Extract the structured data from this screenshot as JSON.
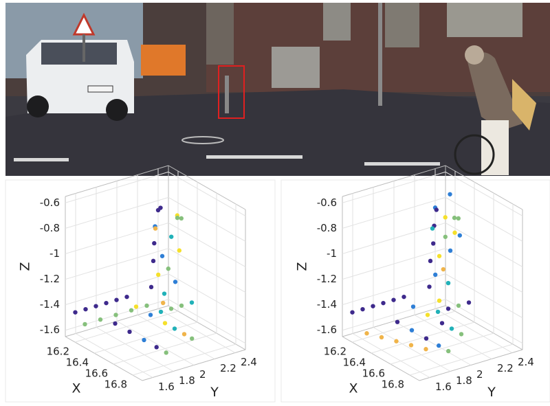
{
  "chart_data": [
    {
      "type": "scatter3d",
      "xlabel": "X",
      "ylabel": "Y",
      "zlabel": "Z",
      "xlim": [
        16.1,
        16.9
      ],
      "ylim": [
        1.5,
        2.5
      ],
      "zlim": [
        -1.65,
        -0.55
      ],
      "xticks": [
        16.2,
        16.4,
        16.6,
        16.8
      ],
      "yticks": [
        1.6,
        1.8,
        2,
        2.2,
        2.4
      ],
      "zticks": [
        -1.6,
        -1.4,
        -1.2,
        -1,
        -0.8,
        -0.6
      ],
      "grid": true,
      "x": [
        16.55,
        16.5,
        16.62,
        16.55,
        16.5,
        16.58,
        16.52,
        16.62,
        16.55,
        16.5,
        16.57,
        16.53,
        16.6,
        16.5,
        16.55,
        16.58,
        16.3,
        16.32,
        16.15,
        16.15,
        16.15,
        16.15,
        16.15,
        16.15,
        16.25,
        16.25,
        16.25,
        16.25,
        16.25,
        16.3,
        16.45,
        16.6,
        16.7,
        16.8,
        16.88,
        16.35,
        16.5,
        16.65,
        16.78,
        16.88,
        16.45,
        16.45,
        16.45,
        16.45
      ],
      "y": [
        1.98,
        2.05,
        2.1,
        1.95,
        2,
        2.08,
        1.97,
        2.12,
        2.02,
        1.98,
        2.06,
        2,
        2.1,
        1.96,
        2.04,
        2,
        2.4,
        2.42,
        1.55,
        1.65,
        1.75,
        1.85,
        1.95,
        2.05,
        1.55,
        1.7,
        1.85,
        2,
        2.15,
        2,
        2,
        2,
        2,
        2,
        2,
        1.75,
        1.75,
        1.75,
        1.75,
        1.75,
        2.1,
        2.2,
        2.3,
        2.4
      ],
      "z": [
        -0.58,
        -0.6,
        -0.62,
        -0.7,
        -0.75,
        -0.8,
        -0.85,
        -0.9,
        -0.95,
        -1,
        -1.05,
        -1.1,
        -1.15,
        -1.2,
        -1.25,
        -1.3,
        -0.85,
        -0.85,
        -1.45,
        -1.45,
        -1.45,
        -1.45,
        -1.45,
        -1.45,
        -1.5,
        -1.5,
        -1.5,
        -1.5,
        -1.5,
        -1.45,
        -1.45,
        -1.45,
        -1.45,
        -1.45,
        -1.45,
        -1.5,
        -1.5,
        -1.5,
        -1.5,
        -1.5,
        -1.45,
        -1.45,
        -1.45,
        -1.45
      ],
      "colors": [
        "#3e2a8c",
        "#3e2a8c",
        "#f5e02b",
        "#2f7fd6",
        "#f0b44a",
        "#21b1b8",
        "#3e2a8c",
        "#f5e02b",
        "#2f7fd6",
        "#3e2a8c",
        "#86c07c",
        "#f5e02b",
        "#2f7fd6",
        "#3e2a8c",
        "#21b1b8",
        "#f0b44a",
        "#86c07c",
        "#86c07c",
        "#3e2a8c",
        "#3e2a8c",
        "#3e2a8c",
        "#3e2a8c",
        "#3e2a8c",
        "#3e2a8c",
        "#86c07c",
        "#86c07c",
        "#86c07c",
        "#86c07c",
        "#86c07c",
        "#f5e02b",
        "#2f7fd6",
        "#f5e02b",
        "#21b1b8",
        "#f0b44a",
        "#86c07c",
        "#3e2a8c",
        "#3e2a8c",
        "#2f7fd6",
        "#3e2a8c",
        "#86c07c",
        "#21b1b8",
        "#86c07c",
        "#86c07c",
        "#21b1b8"
      ]
    },
    {
      "type": "scatter3d",
      "xlabel": "X",
      "ylabel": "Y",
      "zlabel": "Z",
      "xlim": [
        16.1,
        16.9
      ],
      "ylim": [
        1.5,
        2.5
      ],
      "zlim": [
        -1.65,
        -0.55
      ],
      "xticks": [
        16.2,
        16.4,
        16.6,
        16.8
      ],
      "yticks": [
        1.6,
        1.8,
        2,
        2.2,
        2.4
      ],
      "zticks": [
        -1.6,
        -1.4,
        -1.2,
        -1,
        -0.8,
        -0.6
      ],
      "grid": true,
      "x": [
        16.55,
        16.52,
        16.58,
        16.55,
        16.5,
        16.57,
        16.53,
        16.6,
        16.55,
        16.5,
        16.57,
        16.53,
        16.6,
        16.5,
        16.55,
        16.3,
        16.32,
        16.2,
        16.25,
        16.27,
        16.15,
        16.15,
        16.15,
        16.15,
        16.15,
        16.15,
        16.3,
        16.4,
        16.5,
        16.6,
        16.7,
        16.3,
        16.45,
        16.6,
        16.7,
        16.8,
        16.35,
        16.5,
        16.65,
        16.78,
        16.88,
        16.45,
        16.45,
        16.45,
        16.45
      ],
      "y": [
        1.98,
        2.02,
        2.05,
        1.97,
        2,
        2.06,
        1.98,
        2.08,
        2.02,
        1.98,
        2.04,
        2,
        2.06,
        1.97,
        2.02,
        2.4,
        2.42,
        2.45,
        2.45,
        2.48,
        1.55,
        1.65,
        1.75,
        1.85,
        1.95,
        2.05,
        1.55,
        1.6,
        1.65,
        1.7,
        1.75,
        2,
        2,
        2,
        2,
        2,
        1.8,
        1.8,
        1.8,
        1.8,
        1.8,
        2.1,
        2.2,
        2.3,
        2.4
      ],
      "z": [
        -0.56,
        -0.6,
        -0.64,
        -0.7,
        -0.75,
        -0.8,
        -0.85,
        -0.9,
        -0.95,
        -1,
        -1.05,
        -1.1,
        -1.15,
        -1.2,
        -1.3,
        -0.85,
        -0.85,
        -0.72,
        -1,
        -1.02,
        -1.45,
        -1.45,
        -1.45,
        -1.45,
        -1.45,
        -1.45,
        -1.55,
        -1.55,
        -1.55,
        -1.55,
        -1.55,
        -1.45,
        -1.45,
        -1.45,
        -1.45,
        -1.45,
        -1.5,
        -1.5,
        -1.5,
        -1.5,
        -1.5,
        -1.45,
        -1.45,
        -1.45,
        -1.45
      ],
      "colors": [
        "#2f7fd6",
        "#3e2a8c",
        "#f5e02b",
        "#3e2a8c",
        "#21b1b8",
        "#86c07c",
        "#3e2a8c",
        "#2f7fd6",
        "#f5e02b",
        "#3e2a8c",
        "#f0b44a",
        "#2f7fd6",
        "#21b1b8",
        "#3e2a8c",
        "#f5e02b",
        "#86c07c",
        "#86c07c",
        "#2f7fd6",
        "#f5e02b",
        "#2f7fd6",
        "#3e2a8c",
        "#3e2a8c",
        "#3e2a8c",
        "#3e2a8c",
        "#3e2a8c",
        "#3e2a8c",
        "#f0b44a",
        "#f0b44a",
        "#f0b44a",
        "#f0b44a",
        "#f0b44a",
        "#2f7fd6",
        "#f5e02b",
        "#3e2a8c",
        "#21b1b8",
        "#86c07c",
        "#3e2a8c",
        "#2f7fd6",
        "#3e2a8c",
        "#2f7fd6",
        "#86c07c",
        "#21b1b8",
        "#3e2a8c",
        "#86c07c",
        "#3e2a8c"
      ]
    }
  ]
}
